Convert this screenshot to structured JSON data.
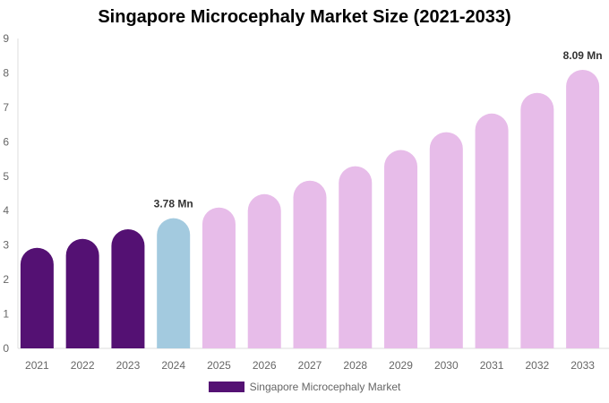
{
  "chart_data": {
    "type": "bar",
    "title": "Singapore Microcephaly Market Size (2021-2033)",
    "categories": [
      "2021",
      "2022",
      "2023",
      "2024",
      "2025",
      "2026",
      "2027",
      "2028",
      "2029",
      "2030",
      "2031",
      "2032",
      "2033"
    ],
    "series": [
      {
        "name": "Singapore Microcephaly Market",
        "values": [
          2.92,
          3.18,
          3.46,
          3.78,
          4.09,
          4.48,
          4.87,
          5.29,
          5.76,
          6.28,
          6.82,
          7.42,
          8.09
        ]
      }
    ],
    "data_labels": {
      "3": "3.78 Mn",
      "12": "8.09 Mn"
    },
    "ylim": [
      0,
      9
    ],
    "yticks": [
      0,
      1,
      2,
      3,
      4,
      5,
      6,
      7,
      8,
      9
    ],
    "colors": {
      "historical": "#541173",
      "current": "#a3cadf",
      "forecast": "#e7bce9"
    },
    "legend_placement": "bottom",
    "grid": false
  }
}
